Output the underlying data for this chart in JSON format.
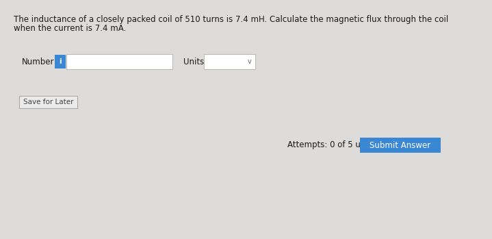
{
  "background_color": "#dddcda",
  "question_text_line1": "The inductance of a closely packed coil of 510 turns is 7.4 mH. Calculate the magnetic flux through the coil",
  "question_text_line2": "when the current is 7.4 mA.",
  "number_label": "Number",
  "units_label": "Units",
  "save_button_text": "Save for Later",
  "attempts_text": "Attempts: 0 of 5 used",
  "submit_button_text": "Submit Answer",
  "submit_button_color": "#3a87d4",
  "submit_button_text_color": "#ffffff",
  "info_icon_color": "#3a87d4",
  "info_icon_text": "i",
  "input_box_color": "#ffffff",
  "input_box_border": "#bbbbbb",
  "save_button_border": "#aaaaaa",
  "save_button_bg": "#ebebeb",
  "text_color": "#1a1a1a",
  "secondary_text_color": "#444444",
  "font_size_question": 8.5,
  "font_size_labels": 8.5,
  "font_size_attempts": 8.5,
  "font_size_submit": 8.5,
  "font_size_icon": 7.5,
  "font_size_save": 7.5
}
